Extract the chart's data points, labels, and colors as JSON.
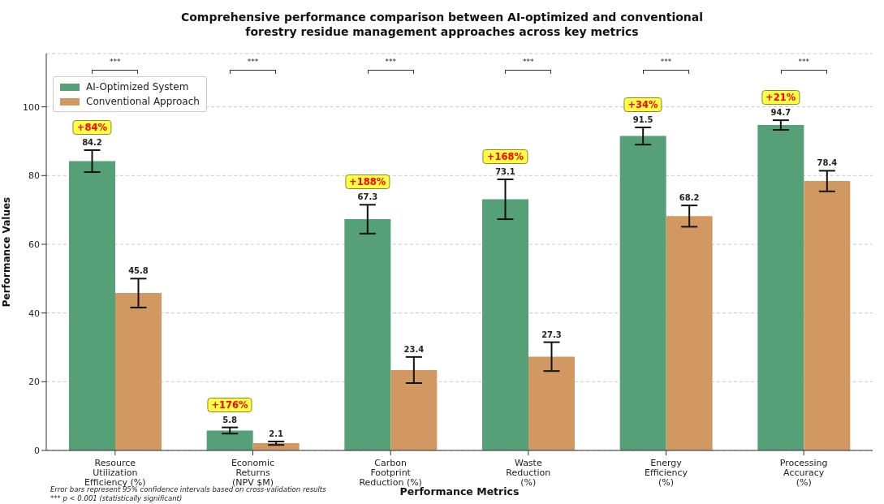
{
  "chart_data": {
    "type": "bar",
    "title": "Comprehensive performance comparison between AI-optimized and conventional\nforestry residue management approaches across key metrics",
    "xlabel": "Performance Metrics",
    "ylabel": "Performance Values",
    "categories": [
      "Resource\nUtilization\nEfficiency (%)",
      "Economic\nReturns\n(NPV $M)",
      "Carbon\nFootprint\nReduction (%)",
      "Waste\nReduction\n(%)",
      "Energy\nEfficiency\n(%)",
      "Processing\nAccuracy\n(%)"
    ],
    "series": [
      {
        "name": "AI-Optimized System",
        "color": "#55a077",
        "values": [
          84.2,
          5.8,
          67.3,
          73.1,
          91.5,
          94.7
        ],
        "errors": [
          3.2,
          0.9,
          4.2,
          5.8,
          2.5,
          1.4
        ]
      },
      {
        "name": "Conventional Approach",
        "color": "#d29862",
        "values": [
          45.8,
          2.1,
          23.4,
          27.3,
          68.2,
          78.4
        ],
        "errors": [
          4.2,
          0.5,
          3.8,
          4.2,
          3.1,
          3.0
        ]
      }
    ],
    "data_labels": true,
    "ylim": [
      0,
      115.5
    ],
    "yticks": [
      0,
      20,
      40,
      60,
      80,
      100
    ],
    "grid": "y",
    "legend": "top left",
    "annotations": [
      "+84%",
      "+176%",
      "+188%",
      "+168%",
      "+34%",
      "+21%",
      "***",
      "***",
      "***",
      "***",
      "***",
      "***",
      "Error bars represent 95% confidence intervals based on cross-validation results",
      "*** p < 0.001 (statistically significant)"
    ]
  }
}
